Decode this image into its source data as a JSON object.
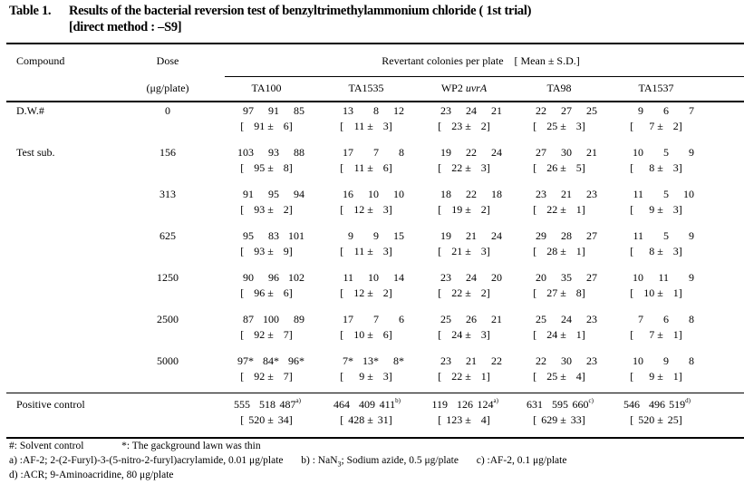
{
  "title": {
    "label": "Table 1.",
    "text": "Results of the bacterial reversion test of benzyltrimethylammonium chloride ( 1st trial)",
    "subtitle": "[direct method : –S9]"
  },
  "header": {
    "compound": "Compound",
    "dose": "Dose",
    "dose_unit": "(μg/plate)",
    "revertant": "Revertant colonies per plate",
    "stat": "[ Mean ± S.D.]",
    "strains": [
      "TA100",
      "TA1535",
      "WP2 ",
      "TA98",
      "TA1537"
    ],
    "strain_italic_suffix": "uvrA"
  },
  "rows": [
    {
      "compound": "D.W.#",
      "dose": "0",
      "cells": [
        {
          "counts": [
            "97",
            "91",
            "85"
          ],
          "mean": "91",
          "sd": "6"
        },
        {
          "counts": [
            "13",
            "8",
            "12"
          ],
          "mean": "11",
          "sd": "3"
        },
        {
          "counts": [
            "23",
            "24",
            "21"
          ],
          "mean": "23",
          "sd": "2"
        },
        {
          "counts": [
            "22",
            "27",
            "25"
          ],
          "mean": "25",
          "sd": "3"
        },
        {
          "counts": [
            "9",
            "6",
            "7"
          ],
          "mean": "7",
          "sd": "2"
        }
      ]
    },
    {
      "compound": "Test sub.",
      "dose": "156",
      "cells": [
        {
          "counts": [
            "103",
            "93",
            "88"
          ],
          "mean": "95",
          "sd": "8"
        },
        {
          "counts": [
            "17",
            "7",
            "8"
          ],
          "mean": "11",
          "sd": "6"
        },
        {
          "counts": [
            "19",
            "22",
            "24"
          ],
          "mean": "22",
          "sd": "3"
        },
        {
          "counts": [
            "27",
            "30",
            "21"
          ],
          "mean": "26",
          "sd": "5"
        },
        {
          "counts": [
            "10",
            "5",
            "9"
          ],
          "mean": "8",
          "sd": "3"
        }
      ]
    },
    {
      "compound": "",
      "dose": "313",
      "cells": [
        {
          "counts": [
            "91",
            "95",
            "94"
          ],
          "mean": "93",
          "sd": "2"
        },
        {
          "counts": [
            "16",
            "10",
            "10"
          ],
          "mean": "12",
          "sd": "3"
        },
        {
          "counts": [
            "18",
            "22",
            "18"
          ],
          "mean": "19",
          "sd": "2"
        },
        {
          "counts": [
            "23",
            "21",
            "23"
          ],
          "mean": "22",
          "sd": "1"
        },
        {
          "counts": [
            "11",
            "5",
            "10"
          ],
          "mean": "9",
          "sd": "3"
        }
      ]
    },
    {
      "compound": "",
      "dose": "625",
      "cells": [
        {
          "counts": [
            "95",
            "83",
            "101"
          ],
          "mean": "93",
          "sd": "9"
        },
        {
          "counts": [
            "9",
            "9",
            "15"
          ],
          "mean": "11",
          "sd": "3"
        },
        {
          "counts": [
            "19",
            "21",
            "24"
          ],
          "mean": "21",
          "sd": "3"
        },
        {
          "counts": [
            "29",
            "28",
            "27"
          ],
          "mean": "28",
          "sd": "1"
        },
        {
          "counts": [
            "11",
            "5",
            "9"
          ],
          "mean": "8",
          "sd": "3"
        }
      ]
    },
    {
      "compound": "",
      "dose": "1250",
      "cells": [
        {
          "counts": [
            "90",
            "96",
            "102"
          ],
          "mean": "96",
          "sd": "6"
        },
        {
          "counts": [
            "11",
            "10",
            "14"
          ],
          "mean": "12",
          "sd": "2"
        },
        {
          "counts": [
            "23",
            "24",
            "20"
          ],
          "mean": "22",
          "sd": "2"
        },
        {
          "counts": [
            "20",
            "35",
            "27"
          ],
          "mean": "27",
          "sd": "8"
        },
        {
          "counts": [
            "10",
            "11",
            "9"
          ],
          "mean": "10",
          "sd": "1"
        }
      ]
    },
    {
      "compound": "",
      "dose": "2500",
      "cells": [
        {
          "counts": [
            "87",
            "100",
            "89"
          ],
          "mean": "92",
          "sd": "7"
        },
        {
          "counts": [
            "17",
            "7",
            "6"
          ],
          "mean": "10",
          "sd": "6"
        },
        {
          "counts": [
            "25",
            "26",
            "21"
          ],
          "mean": "24",
          "sd": "3"
        },
        {
          "counts": [
            "25",
            "24",
            "23"
          ],
          "mean": "24",
          "sd": "1"
        },
        {
          "counts": [
            "7",
            "6",
            "8"
          ],
          "mean": "7",
          "sd": "1"
        }
      ]
    },
    {
      "compound": "",
      "dose": "5000",
      "cells": [
        {
          "counts": [
            "97*",
            "84*",
            "96*"
          ],
          "mean": "92",
          "sd": "7"
        },
        {
          "counts": [
            "7*",
            "13*",
            "8*"
          ],
          "mean": "9",
          "sd": "3"
        },
        {
          "counts": [
            "23",
            "21",
            "22"
          ],
          "mean": "22",
          "sd": "1"
        },
        {
          "counts": [
            "22",
            "30",
            "23"
          ],
          "mean": "25",
          "sd": "4"
        },
        {
          "counts": [
            "10",
            "9",
            "8"
          ],
          "mean": "9",
          "sd": "1"
        }
      ]
    }
  ],
  "positive": {
    "compound": "Positive control",
    "dose": "",
    "cells": [
      {
        "counts": [
          "555",
          "518",
          "487"
        ],
        "marker": "a)",
        "mean": "520",
        "sd": "34"
      },
      {
        "counts": [
          "464",
          "409",
          "411"
        ],
        "marker": "b)",
        "mean": "428",
        "sd": "31"
      },
      {
        "counts": [
          "119",
          "126",
          "124"
        ],
        "marker": "a)",
        "mean": "123",
        "sd": "4"
      },
      {
        "counts": [
          "631",
          "595",
          "660"
        ],
        "marker": "c)",
        "mean": "629",
        "sd": "33"
      },
      {
        "counts": [
          "546",
          "496",
          "519"
        ],
        "marker": "d)",
        "mean": "520",
        "sd": "25"
      }
    ]
  },
  "footnotes": {
    "line1a": "#: Solvent control",
    "line1b": "*: The gackground lawn was thin",
    "line2a": "a) :AF-2; 2-(2-Furyl)-3-(5-nitro-2-furyl)acrylamide, 0.01 μg/plate",
    "line2b_pre": "b) : NaN",
    "line2b_sub": "3",
    "line2b_post": "; Sodium azide, 0.5 μg/plate",
    "line2c": "c) :AF-2, 0.1 μg/plate",
    "line3": "d) :ACR; 9-Aminoacridine, 80 μg/plate"
  }
}
